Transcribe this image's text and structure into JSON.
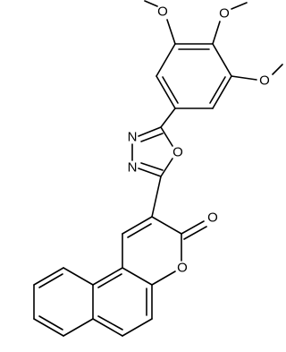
{
  "atoms": {
    "methoxy_o": [
      "O",
      "O",
      "O"
    ],
    "oxadiazole": [
      "N",
      "N",
      "O"
    ],
    "carbonyl_o": "O",
    "ring_o": "O"
  }
}
